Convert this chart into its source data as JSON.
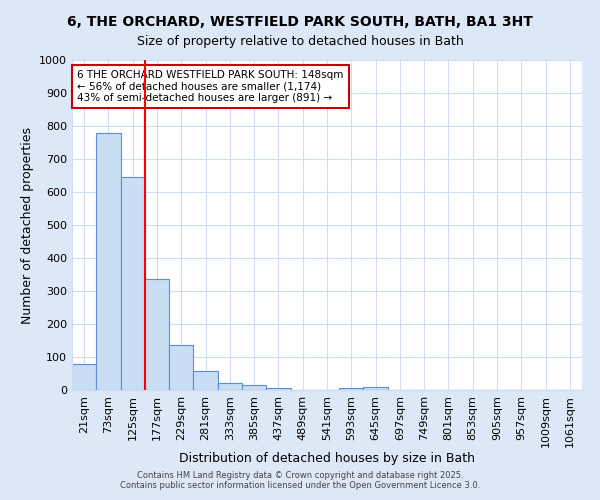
{
  "title_line1": "6, THE ORCHARD, WESTFIELD PARK SOUTH, BATH, BA1 3HT",
  "title_line2": "Size of property relative to detached houses in Bath",
  "xlabel": "Distribution of detached houses by size in Bath",
  "ylabel": "Number of detached properties",
  "bar_categories": [
    "21sqm",
    "73sqm",
    "125sqm",
    "177sqm",
    "229sqm",
    "281sqm",
    "333sqm",
    "385sqm",
    "437sqm",
    "489sqm",
    "541sqm",
    "593sqm",
    "645sqm",
    "697sqm",
    "749sqm",
    "801sqm",
    "853sqm",
    "905sqm",
    "957sqm",
    "1009sqm",
    "1061sqm"
  ],
  "bar_values": [
    80,
    780,
    645,
    335,
    135,
    57,
    22,
    15,
    7,
    0,
    0,
    5,
    10,
    0,
    0,
    0,
    0,
    0,
    0,
    0,
    0
  ],
  "bar_color": "#c9ddf5",
  "bar_edge_color": "#5b8ed6",
  "plot_bg_color": "#ffffff",
  "outer_bg_color": "#dce8f8",
  "grid_color": "#d0dcef",
  "red_line_x": 2.5,
  "annotation_text": "6 THE ORCHARD WESTFIELD PARK SOUTH: 148sqm\n← 56% of detached houses are smaller (1,174)\n43% of semi-detached houses are larger (891) →",
  "annotation_box_color": "#ffffff",
  "annotation_border_color": "#cc0000",
  "ylim": [
    0,
    1000
  ],
  "yticks": [
    0,
    100,
    200,
    300,
    400,
    500,
    600,
    700,
    800,
    900,
    1000
  ],
  "footer_line1": "Contains HM Land Registry data © Crown copyright and database right 2025.",
  "footer_line2": "Contains public sector information licensed under the Open Government Licence 3.0."
}
